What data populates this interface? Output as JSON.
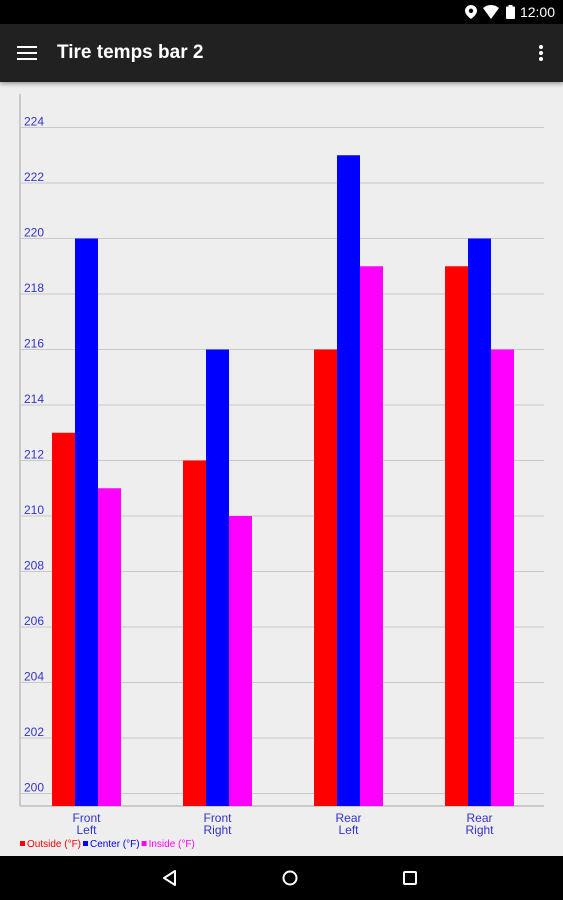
{
  "status_bar": {
    "time": "12:00",
    "icons": [
      "location-icon",
      "wifi-icon",
      "battery-icon"
    ]
  },
  "app_bar": {
    "title": "Tire temps bar 2",
    "menu_icon": "hamburger-menu-icon",
    "overflow_icon": "more-vert-icon"
  },
  "nav_bar": {
    "icons": [
      "back-icon",
      "home-icon",
      "recents-icon"
    ]
  },
  "chart_data": {
    "type": "bar",
    "categories": [
      [
        "Front",
        "Left"
      ],
      [
        "Front",
        "Right"
      ],
      [
        "Rear",
        "Left"
      ],
      [
        "Rear",
        "Right"
      ]
    ],
    "series": [
      {
        "name": "Outside (°F)",
        "color": "#ff0000",
        "values": [
          213,
          212,
          216,
          219
        ]
      },
      {
        "name": "Center (°F)",
        "color": "#0000ff",
        "values": [
          220,
          216,
          223,
          220
        ]
      },
      {
        "name": "Inside (°F)",
        "color": "#ff00ff",
        "values": [
          211,
          210,
          219,
          216
        ]
      }
    ],
    "ylim": [
      200,
      224
    ],
    "y_ticks": [
      200,
      202,
      204,
      206,
      208,
      210,
      212,
      214,
      216,
      218,
      220,
      222,
      224
    ],
    "grid": true,
    "legend_position": "bottom-left",
    "tick_color": "#3333cc"
  }
}
